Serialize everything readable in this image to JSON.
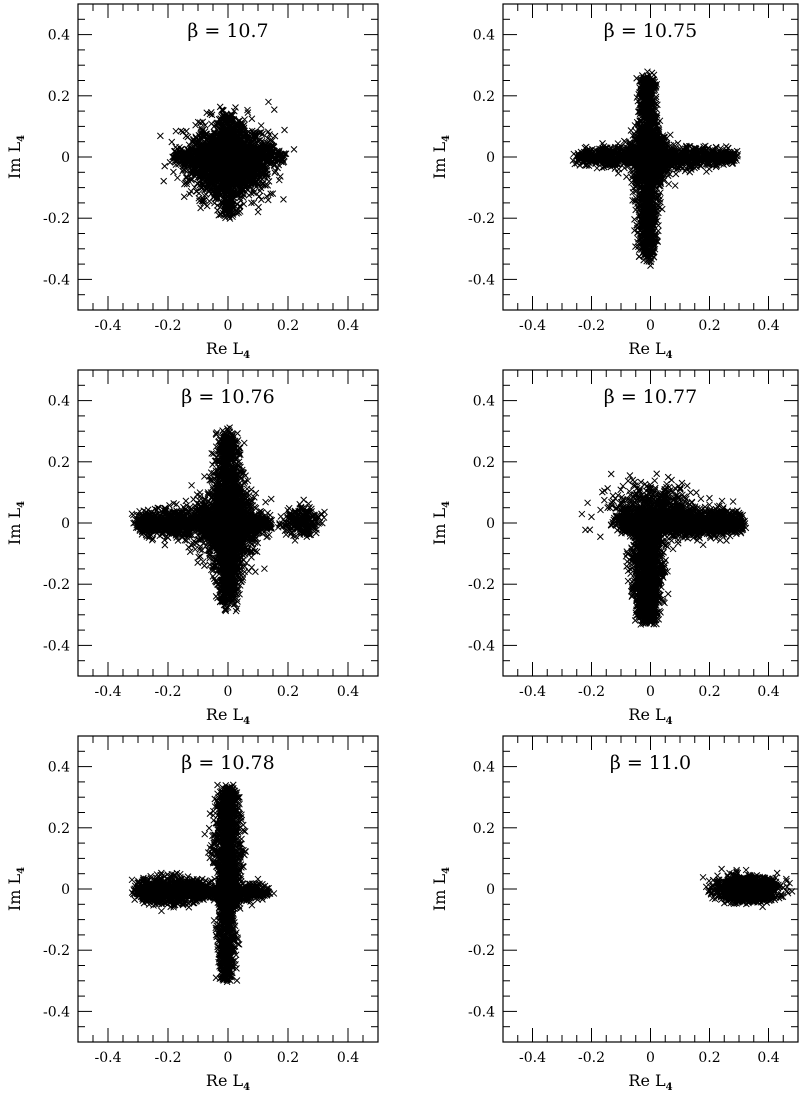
{
  "chart_data": [
    {
      "type": "scatter",
      "title": "β = 10.7",
      "xlabel": "Re L",
      "xlabel_sub": "4",
      "ylabel": "Im L",
      "ylabel_sub": "4",
      "xlim": [
        -0.5,
        0.5
      ],
      "ylim": [
        -0.5,
        0.5
      ],
      "tick_labels": [
        "-0.4",
        "-0.2",
        "0",
        "0.2",
        "0.4"
      ],
      "marker": "x",
      "point_count": 3200,
      "seed": 11,
      "clusters": [
        {
          "shape": "blob",
          "cx": 0.0,
          "cy": -0.01,
          "sx": 0.065,
          "sy": 0.055,
          "weight": 0.72
        },
        {
          "shape": "h-arm",
          "x0": -0.18,
          "x1": 0.18,
          "cy": 0.0,
          "sy": 0.02,
          "weight": 0.14
        },
        {
          "shape": "v-arm",
          "y0": -0.19,
          "y1": 0.14,
          "cx": 0.0,
          "sx": 0.025,
          "weight": 0.14
        }
      ],
      "extra_points": [
        [
          0.22,
          0.025
        ],
        [
          0.1,
          -0.18
        ],
        [
          0.015,
          -0.195
        ],
        [
          0.19,
          0.01
        ],
        [
          -0.17,
          -0.01
        ]
      ]
    },
    {
      "type": "scatter",
      "title": "β = 10.75",
      "xlabel": "Re L",
      "xlabel_sub": "4",
      "ylabel": "Im L",
      "ylabel_sub": "4",
      "xlim": [
        -0.5,
        0.5
      ],
      "ylim": [
        -0.5,
        0.5
      ],
      "tick_labels": [
        "-0.4",
        "-0.2",
        "0",
        "0.2",
        "0.4"
      ],
      "marker": "x",
      "point_count": 3600,
      "seed": 22,
      "clusters": [
        {
          "shape": "blob",
          "cx": 0.0,
          "cy": 0.0,
          "sx": 0.03,
          "sy": 0.04,
          "weight": 0.3
        },
        {
          "shape": "h-arm",
          "x0": -0.24,
          "x1": 0.28,
          "cy": 0.0,
          "sy": 0.022,
          "weight": 0.32
        },
        {
          "shape": "v-arm",
          "y0": -0.33,
          "y1": 0.26,
          "cx": -0.01,
          "sx": 0.022,
          "weight": 0.38
        }
      ],
      "extra_points": [
        [
          -0.26,
          0.01
        ],
        [
          0.0,
          -0.355
        ],
        [
          0.28,
          0.01
        ],
        [
          0.005,
          0.275
        ]
      ]
    },
    {
      "type": "scatter",
      "title": "β = 10.76",
      "xlabel": "Re L",
      "xlabel_sub": "4",
      "ylabel": "Im L",
      "ylabel_sub": "4",
      "xlim": [
        -0.5,
        0.5
      ],
      "ylim": [
        -0.5,
        0.5
      ],
      "tick_labels": [
        "-0.4",
        "-0.2",
        "0",
        "0.2",
        "0.4"
      ],
      "marker": "x",
      "point_count": 4200,
      "seed": 33,
      "clusters": [
        {
          "shape": "blob",
          "cx": 0.0,
          "cy": 0.0,
          "sx": 0.045,
          "sy": 0.06,
          "weight": 0.32
        },
        {
          "shape": "h-arm",
          "x0": -0.3,
          "x1": 0.0,
          "cy": 0.0,
          "sy": 0.028,
          "weight": 0.22
        },
        {
          "shape": "h-arm",
          "x0": 0.0,
          "x1": 0.14,
          "cy": 0.0,
          "sy": 0.025,
          "weight": 0.08
        },
        {
          "shape": "blob",
          "cx": 0.245,
          "cy": 0.005,
          "sx": 0.03,
          "sy": 0.022,
          "weight": 0.06
        },
        {
          "shape": "v-arm",
          "y0": -0.27,
          "y1": 0.29,
          "cx": 0.0,
          "sx": 0.03,
          "weight": 0.32
        }
      ],
      "extra_points": [
        [
          -0.32,
          0.03
        ],
        [
          0.3,
          0.02
        ],
        [
          0.03,
          -0.28
        ],
        [
          0.0,
          0.3
        ]
      ]
    },
    {
      "type": "scatter",
      "title": "β = 10.77",
      "xlabel": "Re L",
      "xlabel_sub": "4",
      "ylabel": "Im L",
      "ylabel_sub": "4",
      "xlim": [
        -0.5,
        0.5
      ],
      "ylim": [
        -0.5,
        0.5
      ],
      "tick_labels": [
        "-0.4",
        "-0.2",
        "0",
        "0.2",
        "0.4"
      ],
      "marker": "x",
      "point_count": 3800,
      "seed": 44,
      "clusters": [
        {
          "shape": "h-arm",
          "x0": -0.1,
          "x1": 0.31,
          "cy": 0.0,
          "sy": 0.028,
          "weight": 0.42
        },
        {
          "shape": "blob",
          "cx": 0.0,
          "cy": 0.05,
          "sx": 0.07,
          "sy": 0.04,
          "weight": 0.14
        },
        {
          "shape": "v-arm",
          "y0": -0.32,
          "y1": 0.0,
          "cx": -0.01,
          "sx": 0.028,
          "weight": 0.44
        }
      ],
      "extra_points": [
        [
          -0.2,
          0.02
        ],
        [
          -0.17,
          -0.045
        ],
        [
          0.28,
          0.07
        ],
        [
          0.02,
          -0.33
        ],
        [
          0.06,
          0.15
        ]
      ]
    },
    {
      "type": "scatter",
      "title": "β = 10.78",
      "xlabel": "Re L",
      "xlabel_sub": "4",
      "ylabel": "Im L",
      "ylabel_sub": "4",
      "xlim": [
        -0.5,
        0.5
      ],
      "ylim": [
        -0.5,
        0.5
      ],
      "tick_labels": [
        "-0.4",
        "-0.2",
        "0",
        "0.2",
        "0.4"
      ],
      "marker": "x",
      "point_count": 3200,
      "seed": 55,
      "clusters": [
        {
          "shape": "h-arm",
          "x0": -0.3,
          "x1": -0.08,
          "cy": -0.005,
          "sy": 0.025,
          "weight": 0.3
        },
        {
          "shape": "h-arm",
          "x0": -0.08,
          "x1": 0.13,
          "cy": -0.01,
          "sy": 0.018,
          "weight": 0.12
        },
        {
          "shape": "v-arm",
          "y0": -0.06,
          "y1": 0.32,
          "cx": 0.0,
          "sx": 0.025,
          "weight": 0.4
        },
        {
          "shape": "v-arm",
          "y0": -0.29,
          "y1": -0.02,
          "cx": -0.005,
          "sx": 0.018,
          "weight": 0.18
        }
      ],
      "extra_points": [
        [
          -0.32,
          0.03
        ],
        [
          0.14,
          -0.015
        ],
        [
          -0.04,
          -0.29
        ],
        [
          -0.035,
          0.34
        ]
      ]
    },
    {
      "type": "scatter",
      "title": "β = 11.0",
      "xlabel": "Re L",
      "xlabel_sub": "4",
      "ylabel": "Im L",
      "ylabel_sub": "4",
      "xlim": [
        -0.5,
        0.5
      ],
      "ylim": [
        -0.5,
        0.5
      ],
      "tick_labels": [
        "-0.4",
        "-0.2",
        "0",
        "0.2",
        "0.4"
      ],
      "marker": "x",
      "point_count": 1800,
      "seed": 66,
      "clusters": [
        {
          "shape": "blob",
          "cx": 0.33,
          "cy": 0.0,
          "sx": 0.045,
          "sy": 0.018,
          "weight": 1.0
        }
      ],
      "extra_points": [
        [
          0.2,
          -0.005
        ],
        [
          0.21,
          -0.03
        ],
        [
          0.45,
          0.005
        ],
        [
          0.23,
          0.03
        ]
      ]
    }
  ]
}
